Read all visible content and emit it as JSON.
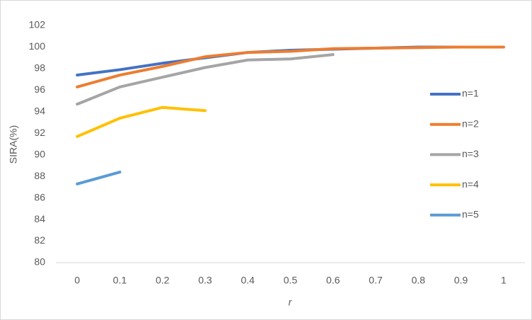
{
  "chart_data": {
    "type": "line",
    "x_label": "r",
    "y_label": "SIRA(%)",
    "categories": [
      "0",
      "0.1",
      "0.2",
      "0.3",
      "0.4",
      "0.5",
      "0.6",
      "0.7",
      "0.8",
      "0.9",
      "1"
    ],
    "series": [
      {
        "name": "n=1",
        "color": "#4472c4",
        "values": [
          97.4,
          97.9,
          98.5,
          99.0,
          99.5,
          99.7,
          99.8,
          99.9,
          100,
          100,
          100
        ]
      },
      {
        "name": "n=2",
        "color": "#ed7d31",
        "values": [
          96.3,
          97.4,
          98.2,
          99.1,
          99.5,
          99.6,
          99.85,
          99.9,
          99.95,
          100,
          100
        ]
      },
      {
        "name": "n=3",
        "color": "#a5a5a5",
        "values": [
          94.7,
          96.3,
          97.2,
          98.1,
          98.8,
          98.9,
          99.3,
          null,
          null,
          null,
          null
        ]
      },
      {
        "name": "n=4",
        "color": "#ffc000",
        "values": [
          91.7,
          93.4,
          94.4,
          94.1,
          null,
          null,
          null,
          null,
          null,
          null,
          null
        ]
      },
      {
        "name": "n=5",
        "color": "#5b9bd5",
        "values": [
          87.3,
          88.4,
          null,
          null,
          null,
          null,
          null,
          null,
          null,
          null,
          null
        ]
      }
    ],
    "ylim": [
      80,
      102
    ],
    "yticks": [
      80,
      82,
      84,
      86,
      88,
      90,
      92,
      94,
      96,
      98,
      100,
      102
    ],
    "grid": false,
    "legend": "right"
  }
}
